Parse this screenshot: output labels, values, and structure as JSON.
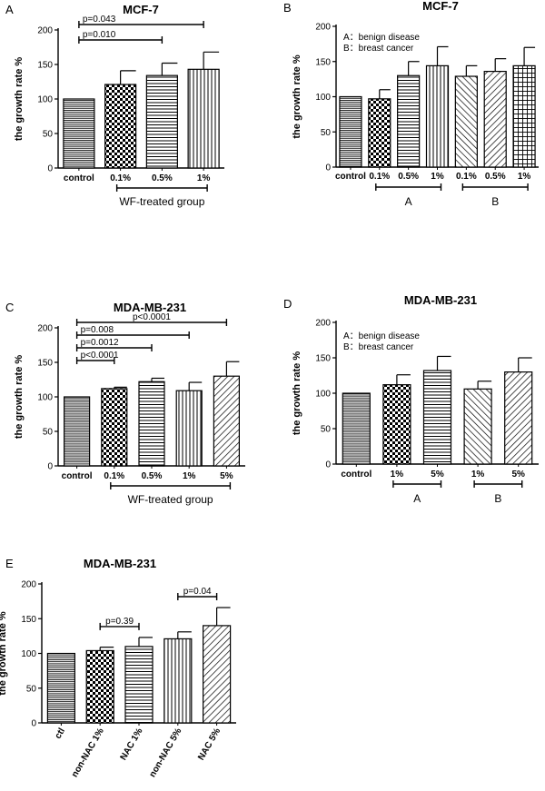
{
  "chart_data": [
    {
      "type": "bar",
      "panel_label": "A",
      "title": "MCF-7",
      "ylabel": "the growth rate %",
      "xlabel": "",
      "ylim": [
        0,
        200
      ],
      "yticks": [
        "0",
        "50",
        "100",
        "150",
        "200"
      ],
      "categories": [
        "control",
        "0.1%",
        "0.5%",
        "1%"
      ],
      "values": [
        100,
        121,
        134,
        143
      ],
      "errors": [
        0,
        20,
        18,
        25
      ],
      "patterns": [
        "fine-h",
        "check",
        "h-lines",
        "v-lines"
      ],
      "significance": [
        {
          "label": "p=0.043",
          "from": 0,
          "to": 3
        },
        {
          "label": "p=0.010",
          "from": 0,
          "to": 2
        }
      ],
      "groups": [
        {
          "label": "WF-treated group",
          "from": 1,
          "to": 3
        }
      ],
      "legend": []
    },
    {
      "type": "bar",
      "panel_label": "B",
      "title": "MCF-7",
      "ylabel": "the growth rate %",
      "xlabel": "",
      "ylim": [
        0,
        200
      ],
      "yticks": [
        "0",
        "50",
        "100",
        "150",
        "200"
      ],
      "categories": [
        "control",
        "0.1%",
        "0.5%",
        "1%",
        "0.1%",
        "0.5%",
        "1%"
      ],
      "values": [
        100,
        97,
        130,
        144,
        129,
        136,
        144
      ],
      "errors": [
        0,
        13,
        20,
        27,
        15,
        18,
        26
      ],
      "patterns": [
        "fine-h",
        "check",
        "h-lines",
        "v-lines",
        "diag-back",
        "diag-fwd",
        "grid"
      ],
      "significance": [],
      "groups": [
        {
          "label": "A",
          "from": 1,
          "to": 3
        },
        {
          "label": "B",
          "from": 4,
          "to": 6
        }
      ],
      "legend": [
        "A：benign disease",
        "B：breast cancer"
      ]
    },
    {
      "type": "bar",
      "panel_label": "C",
      "title": "MDA-MB-231",
      "ylabel": "the growth rate %",
      "xlabel": "",
      "ylim": [
        0,
        200
      ],
      "yticks": [
        "0",
        "50",
        "100",
        "150",
        "200"
      ],
      "categories": [
        "control",
        "0.1%",
        "0.5%",
        "1%",
        "5%"
      ],
      "values": [
        100,
        112,
        122,
        109,
        130
      ],
      "errors": [
        0,
        2,
        5,
        12,
        21
      ],
      "patterns": [
        "fine-h",
        "check",
        "h-lines",
        "v-lines",
        "diag-fwd"
      ],
      "significance": [
        {
          "label": "p<0.0001",
          "from": 0,
          "to": 4
        },
        {
          "label": "p=0.008",
          "from": 0,
          "to": 3
        },
        {
          "label": "p=0.0012",
          "from": 0,
          "to": 2
        },
        {
          "label": "p<0.0001",
          "from": 0,
          "to": 1
        }
      ],
      "groups": [
        {
          "label": "WF-treated group",
          "from": 1,
          "to": 4
        }
      ],
      "legend": []
    },
    {
      "type": "bar",
      "panel_label": "D",
      "title": "MDA-MB-231",
      "ylabel": "the growth rate %",
      "xlabel": "",
      "ylim": [
        0,
        200
      ],
      "yticks": [
        "0",
        "50",
        "100",
        "150",
        "200"
      ],
      "categories": [
        "control",
        "1%",
        "5%",
        "1%",
        "5%"
      ],
      "values": [
        100,
        112,
        132,
        106,
        130
      ],
      "errors": [
        0,
        14,
        20,
        11,
        20
      ],
      "patterns": [
        "fine-h",
        "check",
        "h-lines",
        "diag-back",
        "diag-fwd"
      ],
      "significance": [],
      "groups": [
        {
          "label": "A",
          "from": 1,
          "to": 2
        },
        {
          "label": "B",
          "from": 3,
          "to": 4
        }
      ],
      "legend": [
        "A：benign disease",
        "B：breast cancer"
      ]
    },
    {
      "type": "bar",
      "panel_label": "E",
      "title": "MDA-MB-231",
      "ylabel": "the growth rate %",
      "xlabel": "",
      "ylim": [
        0,
        200
      ],
      "yticks": [
        "0",
        "50",
        "100",
        "150",
        "200"
      ],
      "categories": [
        "ctl",
        "non-NAC 1%",
        "NAC 1%",
        "non-NAC 5%",
        "NAC 5%"
      ],
      "values": [
        100,
        104,
        110,
        121,
        140
      ],
      "errors": [
        0,
        5,
        13,
        10,
        26
      ],
      "patterns": [
        "fine-h",
        "check",
        "h-lines",
        "v-lines",
        "diag-fwd"
      ],
      "significance": [
        {
          "label": "p=0.39",
          "from": 1,
          "to": 2
        },
        {
          "label": "p=0.04",
          "from": 3,
          "to": 4
        }
      ],
      "groups": [],
      "legend": []
    }
  ]
}
